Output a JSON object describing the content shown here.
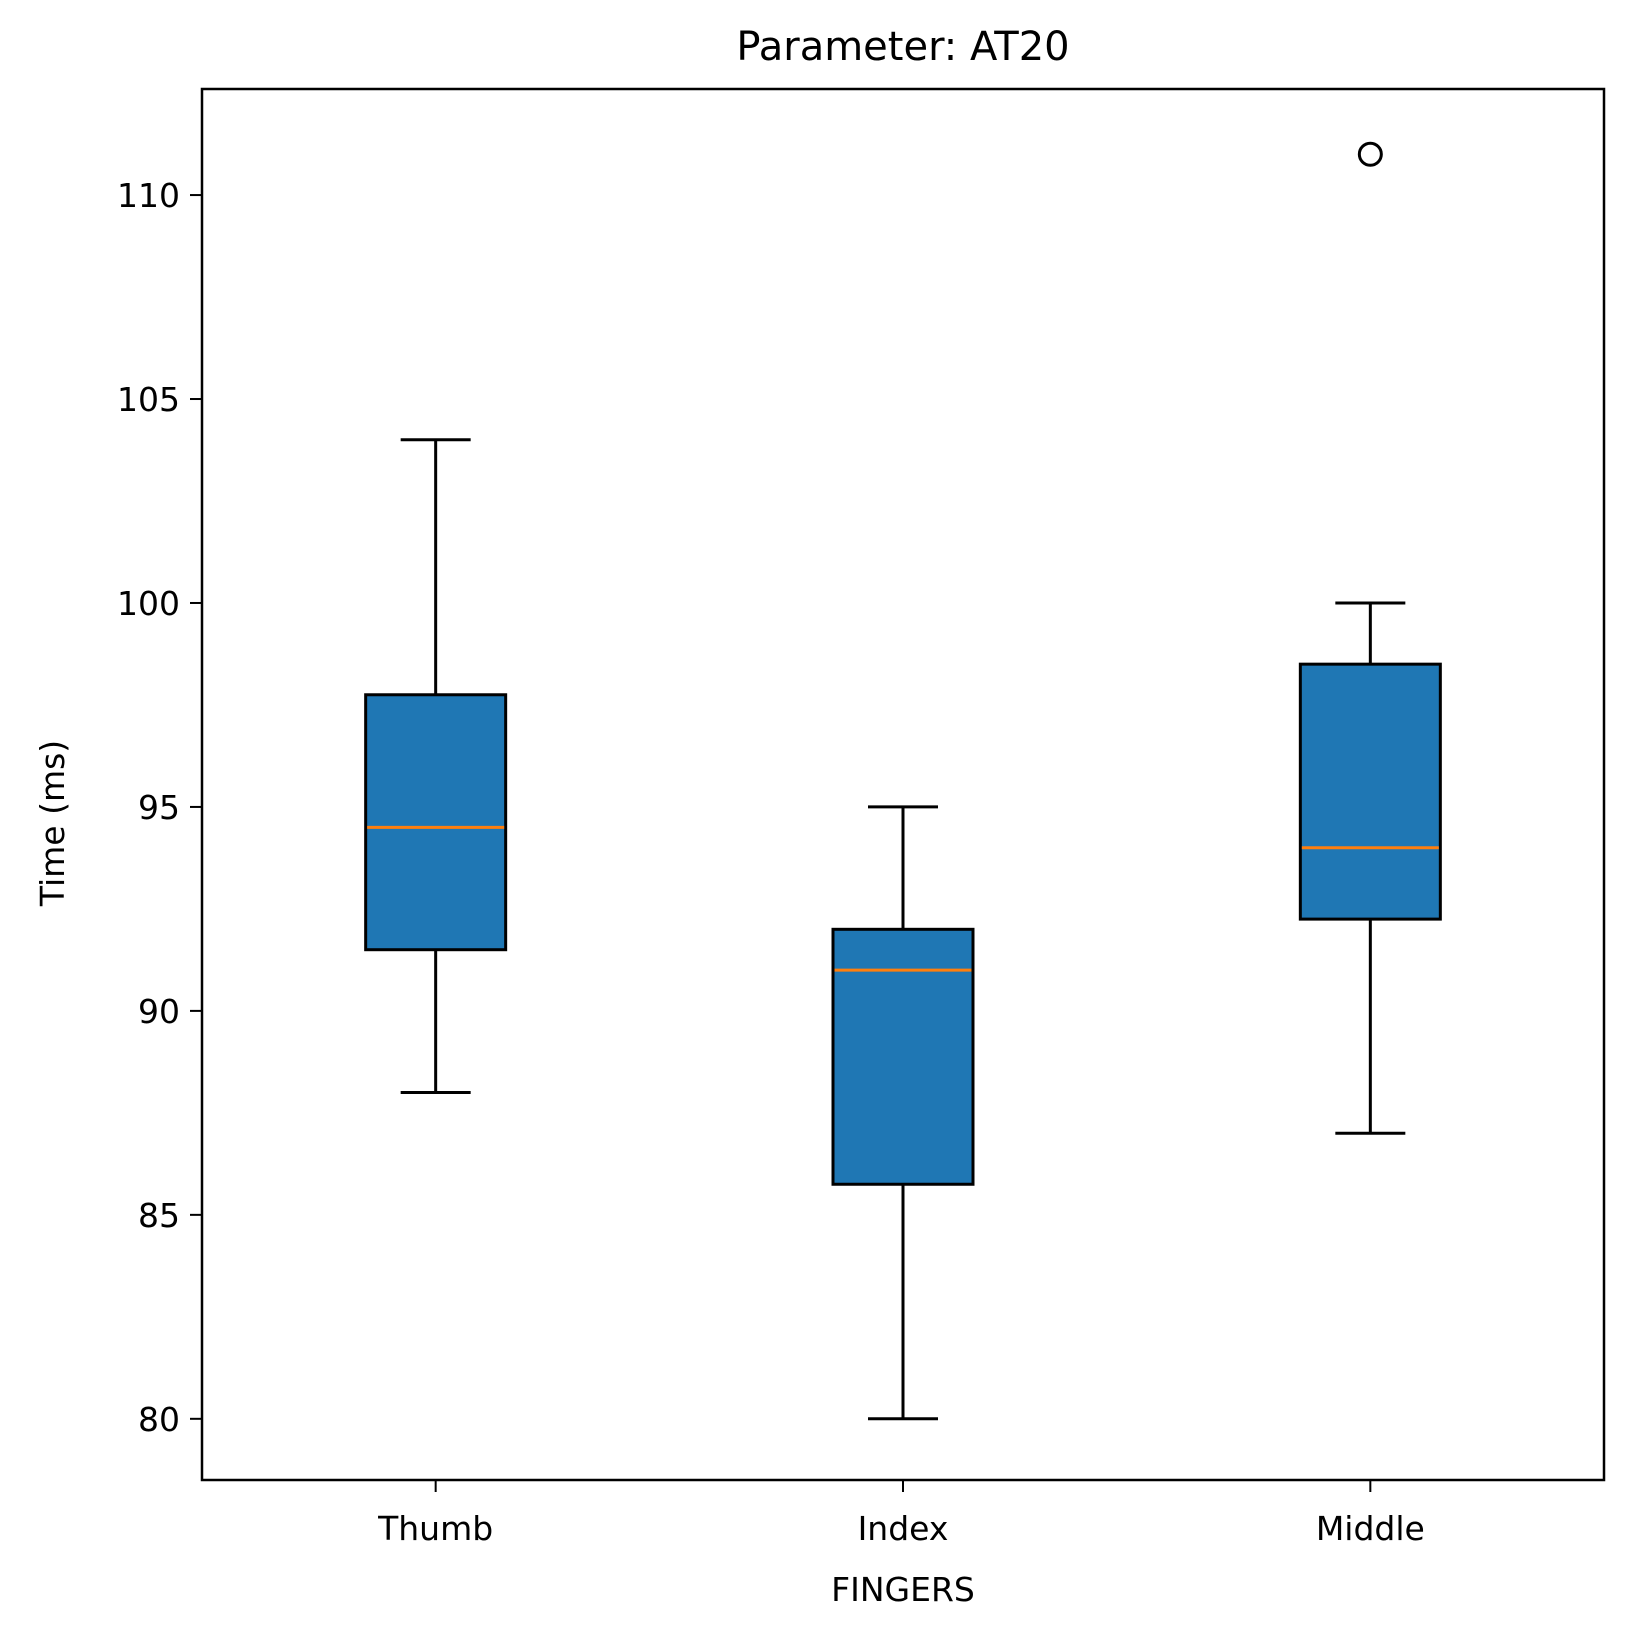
{
  "chart_data": {
    "type": "box",
    "title": "Parameter: AT20",
    "xlabel": "FINGERS",
    "ylabel": "Time (ms)",
    "ylim": [
      78.5,
      112.6
    ],
    "yticks": [
      80,
      85,
      90,
      95,
      100,
      105,
      110
    ],
    "grid": false,
    "legend": "none",
    "box_color": "#1f77b4",
    "median_color": "#ff7f0e",
    "categories": [
      "Thumb",
      "Index",
      "Middle"
    ],
    "boxes": [
      {
        "label": "Thumb",
        "whisker_low": 88,
        "q1": 91.5,
        "median": 94.5,
        "q3": 97.75,
        "whisker_high": 104,
        "outliers": []
      },
      {
        "label": "Index",
        "whisker_low": 80,
        "q1": 85.75,
        "median": 91,
        "q3": 92,
        "whisker_high": 95,
        "outliers": []
      },
      {
        "label": "Middle",
        "whisker_low": 87,
        "q1": 92.25,
        "median": 94,
        "q3": 98.5,
        "whisker_high": 100,
        "outliers": [
          111
        ]
      }
    ]
  }
}
